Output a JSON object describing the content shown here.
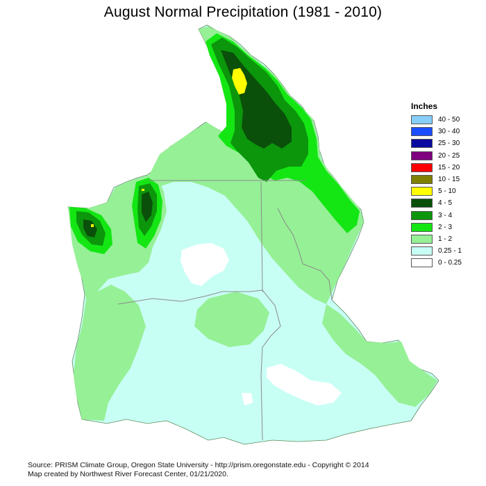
{
  "title": "August Normal Precipitation (1981 - 2010)",
  "legend": {
    "title": "Inches",
    "items": [
      {
        "label": "40 - 50",
        "color": "#87CEFA"
      },
      {
        "label": "30 - 40",
        "color": "#1A4DFF"
      },
      {
        "label": "25 - 30",
        "color": "#0A0AA0"
      },
      {
        "label": "20 - 25",
        "color": "#800080"
      },
      {
        "label": "15 - 20",
        "color": "#FF0000"
      },
      {
        "label": "10 - 15",
        "color": "#808000"
      },
      {
        "label": "5 - 10",
        "color": "#FFFF00"
      },
      {
        "label": "4 - 5",
        "color": "#0A500A"
      },
      {
        "label": "3 - 4",
        "color": "#0C960C"
      },
      {
        "label": "2 - 3",
        "color": "#14E614"
      },
      {
        "label": "1 - 2",
        "color": "#96F096"
      },
      {
        "label": "0.25 - 1",
        "color": "#C8FFF5"
      },
      {
        "label": "0 - 0.25",
        "color": "#FFFFFF"
      }
    ]
  },
  "footer": {
    "line1": "Source: PRISM Climate Group, Oregon State University - http://prism.oregonstate.edu - Copyright © 2014",
    "line2": "Map created by Northwest River Forecast Center, 01/21/2020."
  }
}
